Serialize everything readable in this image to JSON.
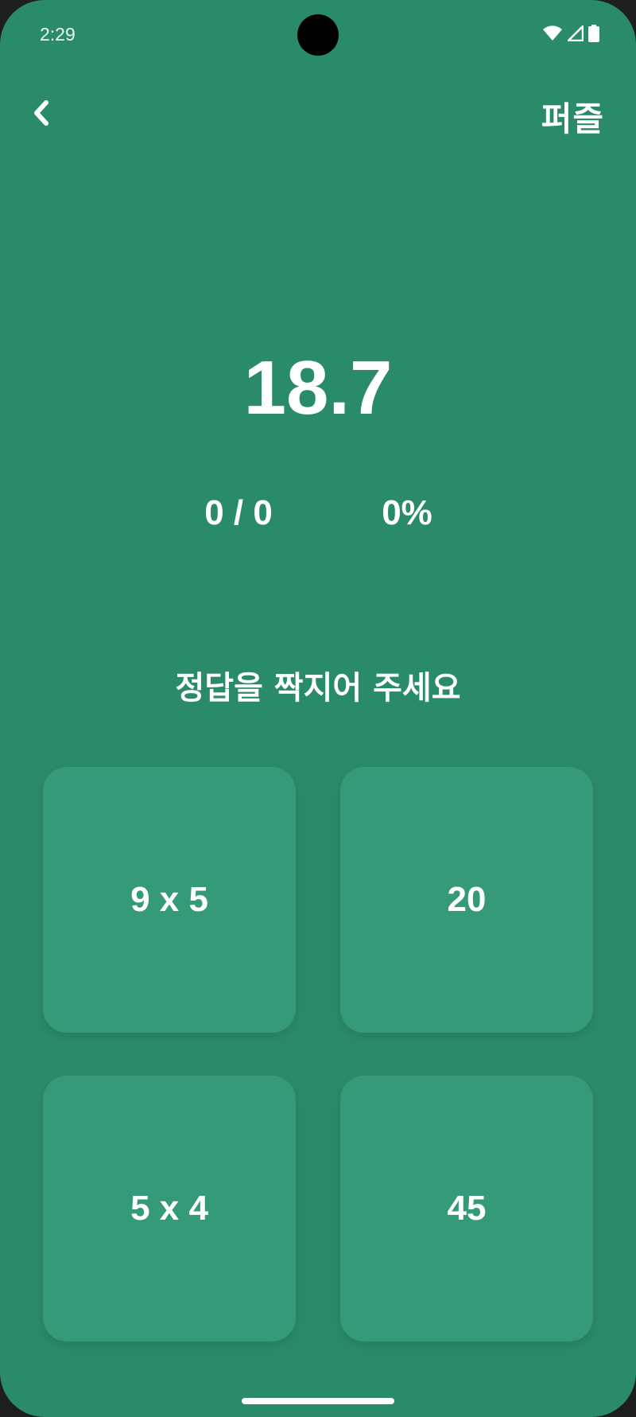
{
  "status_bar": {
    "time": "2:29",
    "icons": [
      "wifi-icon",
      "signal-icon",
      "battery-icon"
    ]
  },
  "header": {
    "back_icon": "chevron-left-icon",
    "title": "퍼즐"
  },
  "game": {
    "timer": "18.7",
    "score": "0 / 0",
    "percent": "0%",
    "instruction": "정답을 짝지어 주세요"
  },
  "cards": [
    {
      "label": "9 x 5"
    },
    {
      "label": "20"
    },
    {
      "label": "5 x 4"
    },
    {
      "label": "45"
    }
  ],
  "colors": {
    "background": "#2a8b6b",
    "card": "#349a79",
    "text": "#ffffff"
  }
}
